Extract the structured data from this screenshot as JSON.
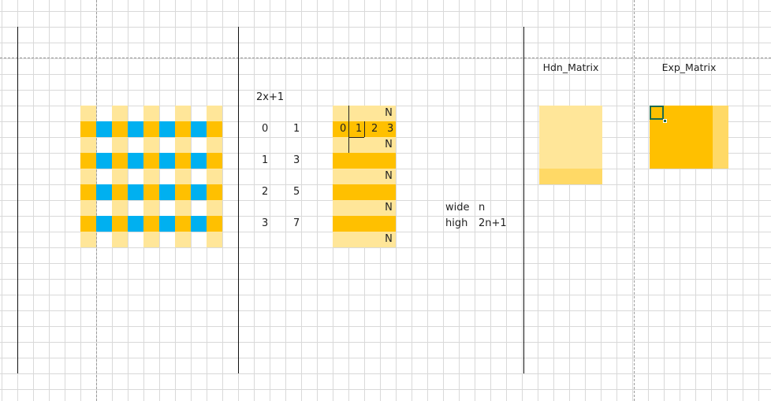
{
  "formula": "2x+1",
  "mapping": [
    {
      "x": "0",
      "y": "1"
    },
    {
      "x": "1",
      "y": "3"
    },
    {
      "x": "2",
      "y": "5"
    },
    {
      "x": "3",
      "y": "7"
    }
  ],
  "index_row": [
    "0",
    "1",
    "2",
    "3"
  ],
  "n_marker": "N",
  "params": [
    {
      "key": "wide",
      "value": "n"
    },
    {
      "key": "high",
      "value": "2n+1"
    }
  ],
  "headers": {
    "hdn": "Hdn_Matrix",
    "exp": "Exp_Matrix"
  },
  "colors": {
    "light_yellow": "#ffe699",
    "dark_yellow": "#ffc000",
    "blue": "#00b0f0",
    "selection_green": "#1f6b4e"
  }
}
